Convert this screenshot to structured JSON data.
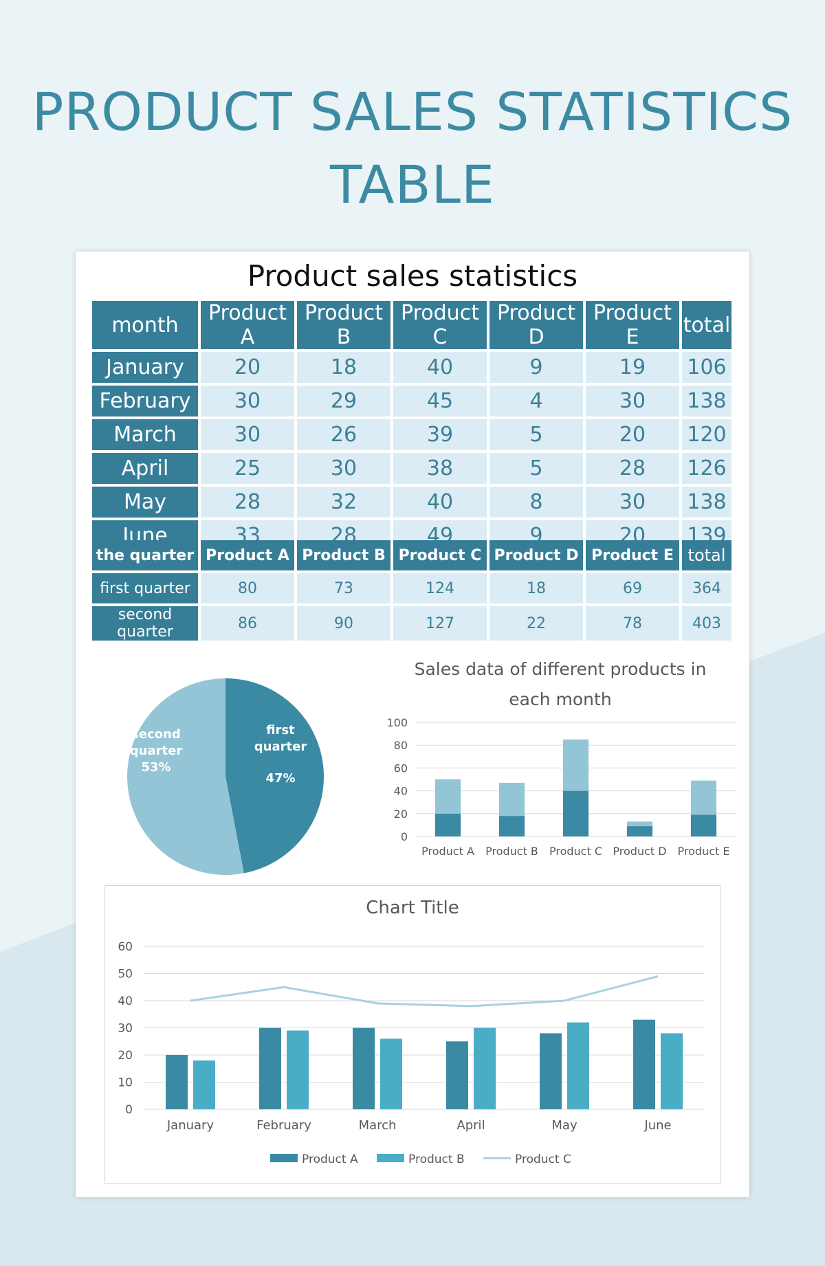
{
  "header": {
    "title_line1": "PRODUCT SALES STATISTICS",
    "title_line2": "TABLE"
  },
  "sheet_title": "Product sales statistics",
  "monthly_table": {
    "headers": [
      "month",
      "Product A",
      "Product B",
      "Product C",
      "Product D",
      "Product E",
      "total"
    ],
    "rows": [
      [
        "January",
        "20",
        "18",
        "40",
        "9",
        "19",
        "106"
      ],
      [
        "February",
        "30",
        "29",
        "45",
        "4",
        "30",
        "138"
      ],
      [
        "March",
        "30",
        "26",
        "39",
        "5",
        "20",
        "120"
      ],
      [
        "April",
        "25",
        "30",
        "38",
        "5",
        "28",
        "126"
      ],
      [
        "May",
        "28",
        "32",
        "40",
        "8",
        "30",
        "138"
      ],
      [
        "June",
        "33",
        "28",
        "49",
        "9",
        "20",
        "139"
      ]
    ]
  },
  "quarter_table": {
    "headers": [
      "the quarter",
      "Product A",
      "Product B",
      "Product C",
      "Product D",
      "Product E",
      "total"
    ],
    "rows": [
      [
        "first quarter",
        "80",
        "73",
        "124",
        "18",
        "69",
        "364"
      ],
      [
        "second quarter",
        "86",
        "90",
        "127",
        "22",
        "78",
        "403"
      ]
    ]
  },
  "colors": {
    "title_blue": "#3d8ba3",
    "header_dark": "#367e98",
    "cell_light": "#dbecf4",
    "series_dark": "#3a8aa3",
    "series_mid": "#4bacc6",
    "series_light": "#94c5d7",
    "line_light": "#a9d1e0"
  },
  "chart_data": [
    {
      "type": "pie",
      "title": "",
      "slices": [
        {
          "label_lines": [
            "first",
            "quarter"
          ],
          "pct_label": "47%",
          "value": 47
        },
        {
          "label_lines": [
            "second",
            "quarter"
          ],
          "pct_label": "53%",
          "value": 53
        }
      ]
    },
    {
      "type": "bar",
      "stacked": true,
      "title_lines": [
        "Sales data of different products in",
        "each month"
      ],
      "categories": [
        "Product A",
        "Product B",
        "Product C",
        "Product D",
        "Product E"
      ],
      "series": [
        {
          "values": [
            20,
            18,
            40,
            9,
            19
          ]
        },
        {
          "values": [
            30,
            29,
            45,
            4,
            30
          ]
        }
      ],
      "ylim": [
        0,
        100
      ],
      "yticks": [
        "0",
        "20",
        "40",
        "60",
        "80",
        "100"
      ],
      "grid": true
    },
    {
      "type": "bar",
      "title": "Chart Title",
      "categories": [
        "January",
        "February",
        "March",
        "April",
        "May",
        "June"
      ],
      "series": [
        {
          "name": "Product A",
          "type": "bar",
          "values": [
            20,
            30,
            30,
            25,
            28,
            33
          ]
        },
        {
          "name": "Product B",
          "type": "bar",
          "values": [
            18,
            29,
            26,
            30,
            32,
            28
          ]
        },
        {
          "name": "Product C",
          "type": "line",
          "values": [
            40,
            45,
            39,
            38,
            40,
            49
          ]
        }
      ],
      "ylim": [
        0,
        60
      ],
      "yticks": [
        "0",
        "10",
        "20",
        "30",
        "40",
        "50",
        "60"
      ],
      "grid": true,
      "legend_position": "bottom"
    }
  ]
}
